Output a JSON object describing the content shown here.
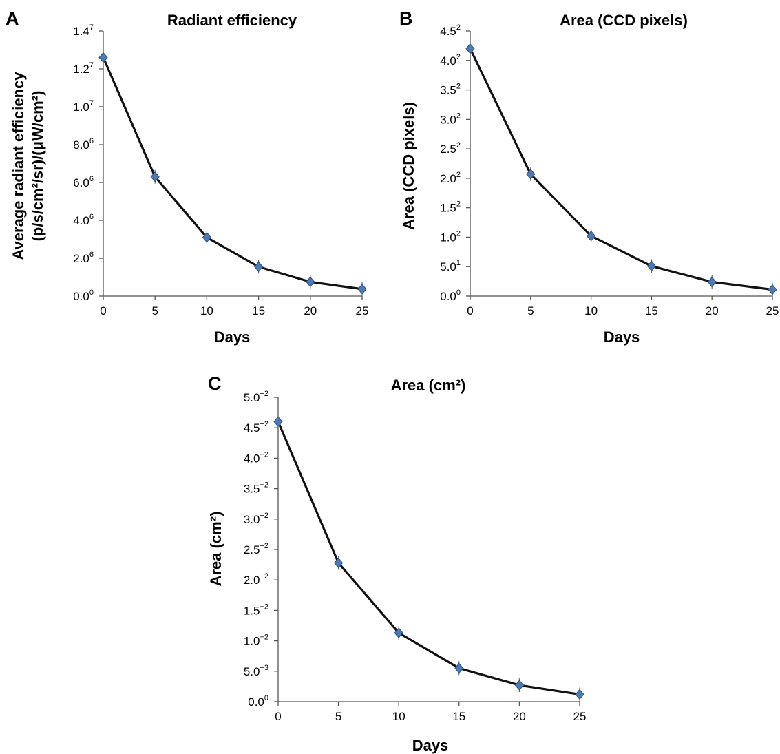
{
  "figure": {
    "panels": [
      {
        "letter": "A",
        "title": "Radiant efficiency",
        "xlabel": "Days",
        "ylabel_lines": [
          "Average radiant efficiency",
          "(p/s/cm²/sr)/(μW/cm²)"
        ]
      },
      {
        "letter": "B",
        "title": "Area (CCD pixels)",
        "xlabel": "Days",
        "ylabel_lines": [
          "Area (CCD pixels)"
        ]
      },
      {
        "letter": "C",
        "title": "Area (cm²)",
        "xlabel": "Days",
        "ylabel_lines": [
          "Area (cm²)"
        ]
      }
    ]
  },
  "chart_data": [
    {
      "type": "line",
      "title": "Radiant efficiency",
      "xlabel": "Days",
      "ylabel": "Average radiant efficiency (p/s/cm²/sr)/(μW/cm²)",
      "x": [
        0,
        5,
        10,
        15,
        20,
        25
      ],
      "series": [
        {
          "values": [
            12600000,
            6300000,
            3100000,
            1550000,
            750000,
            370000
          ]
        }
      ],
      "xlim": [
        0,
        25
      ],
      "ylim": [
        0,
        14000000
      ],
      "x_ticks": [
        "0",
        "5",
        "10",
        "15",
        "20",
        "25"
      ],
      "y_ticks": [
        {
          "base": "0.0",
          "exp": "0"
        },
        {
          "base": "2.0",
          "exp": "6"
        },
        {
          "base": "4.0",
          "exp": "6"
        },
        {
          "base": "6.0",
          "exp": "6"
        },
        {
          "base": "8.0",
          "exp": "6"
        },
        {
          "base": "1.0",
          "exp": "7"
        },
        {
          "base": "1.2",
          "exp": "7"
        },
        {
          "base": "1.4",
          "exp": "7"
        }
      ],
      "grid": false,
      "marker_color": "#4d79b4",
      "line_color": "#111111"
    },
    {
      "type": "line",
      "title": "Area (CCD pixels)",
      "xlabel": "Days",
      "ylabel": "Area (CCD pixels)",
      "x": [
        0,
        5,
        10,
        15,
        20,
        25
      ],
      "series": [
        {
          "values": [
            420,
            207,
            102,
            51,
            24,
            11
          ]
        }
      ],
      "xlim": [
        0,
        25
      ],
      "ylim": [
        0,
        450
      ],
      "x_ticks": [
        "0",
        "5",
        "10",
        "15",
        "20",
        "25"
      ],
      "y_ticks": [
        {
          "base": "0.0",
          "exp": "0"
        },
        {
          "base": "5.0",
          "exp": "1"
        },
        {
          "base": "1.0",
          "exp": "2"
        },
        {
          "base": "1.5",
          "exp": "2"
        },
        {
          "base": "2.0",
          "exp": "2"
        },
        {
          "base": "2.5",
          "exp": "2"
        },
        {
          "base": "3.0",
          "exp": "2"
        },
        {
          "base": "3.5",
          "exp": "2"
        },
        {
          "base": "4.0",
          "exp": "2"
        },
        {
          "base": "4.5",
          "exp": "2"
        }
      ],
      "grid": false,
      "marker_color": "#4d79b4",
      "line_color": "#111111"
    },
    {
      "type": "line",
      "title": "Area (cm²)",
      "xlabel": "Days",
      "ylabel": "Area (cm²)",
      "x": [
        0,
        5,
        10,
        15,
        20,
        25
      ],
      "series": [
        {
          "values": [
            0.046,
            0.0228,
            0.0113,
            0.0055,
            0.0027,
            0.0012
          ]
        }
      ],
      "xlim": [
        0,
        25
      ],
      "ylim": [
        0,
        0.05
      ],
      "x_ticks": [
        "0",
        "5",
        "10",
        "15",
        "20",
        "25"
      ],
      "y_ticks": [
        {
          "base": "0.0",
          "exp": "0"
        },
        {
          "base": "5.0",
          "exp": "−3"
        },
        {
          "base": "1.0",
          "exp": "−2"
        },
        {
          "base": "1.5",
          "exp": "−2"
        },
        {
          "base": "2.0",
          "exp": "−2"
        },
        {
          "base": "2.5",
          "exp": "−2"
        },
        {
          "base": "3.0",
          "exp": "−2"
        },
        {
          "base": "3.5",
          "exp": "−2"
        },
        {
          "base": "4.0",
          "exp": "−2"
        },
        {
          "base": "4.5",
          "exp": "−2"
        },
        {
          "base": "5.0",
          "exp": "−2"
        }
      ],
      "grid": false,
      "marker_color": "#4d79b4",
      "line_color": "#111111"
    }
  ]
}
